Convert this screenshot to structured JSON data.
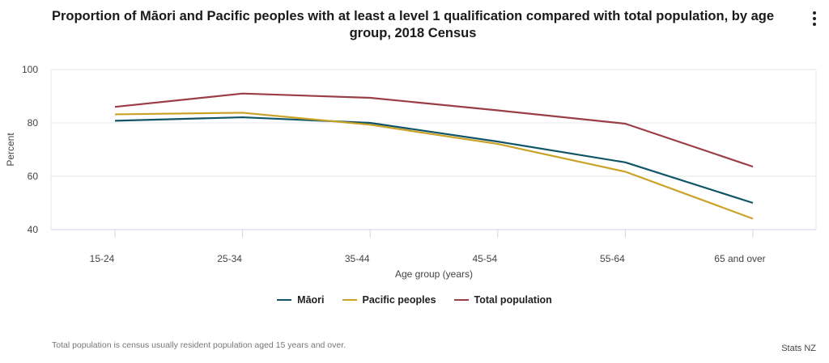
{
  "chart_data": {
    "type": "line",
    "title": "Proportion of Māori and Pacific peoples with at least a level 1 qualification compared with total population, by age group, 2018 Census",
    "xlabel": "Age group (years)",
    "ylabel": "Percent",
    "ylim": [
      40,
      100
    ],
    "yticks": [
      40,
      60,
      80,
      100
    ],
    "categories": [
      "15-24",
      "25-34",
      "35-44",
      "45-54",
      "55-64",
      "65 and over"
    ],
    "series": [
      {
        "name": "Māori",
        "color": "#0f5467",
        "values": [
          80.8,
          82.1,
          80.0,
          73.0,
          65.2,
          50.0
        ]
      },
      {
        "name": "Pacific peoples",
        "color": "#c9a227",
        "values": [
          83.2,
          83.8,
          79.3,
          72.1,
          61.7,
          44.1
        ]
      },
      {
        "name": "Total population",
        "color": "#9b3d46",
        "values": [
          86.0,
          91.0,
          89.4,
          84.7,
          79.7,
          63.6
        ]
      }
    ],
    "legend_position": "bottom"
  },
  "footnote": "Total population is census usually resident population aged 15 years and over.",
  "source": "Stats NZ",
  "menu_icon": "more-vertical-icon"
}
